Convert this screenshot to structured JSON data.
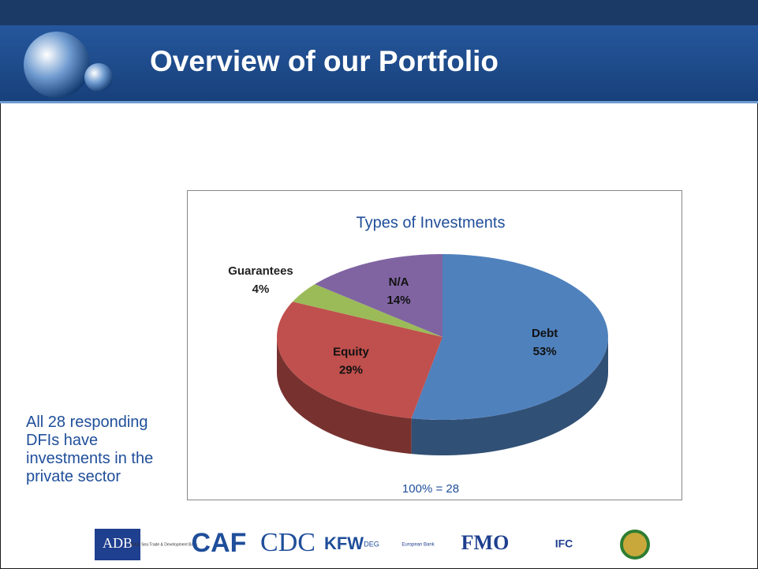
{
  "slide_title": "Overview of our Portfolio",
  "side_note": [
    "All 28 responding",
    "DFIs have",
    "investments in the",
    "private sector"
  ],
  "logos": [
    "ADB",
    "Black Sea Trade & Development Bank",
    "CAF",
    "CDC",
    "KFW",
    "DEG",
    "European Bank",
    "FMO",
    "IFC"
  ],
  "chart_data": {
    "type": "pie",
    "title": "Types of Investments",
    "annotation": "100% = 28",
    "categories": [
      "Debt",
      "Equity",
      "Guarantees",
      "N/A"
    ],
    "values": [
      53,
      29,
      4,
      14
    ],
    "value_labels": [
      "53%",
      "29%",
      "4%",
      "14%"
    ],
    "colors": [
      "#4f81bd",
      "#c0504d",
      "#9bbb59",
      "#8064a2"
    ]
  }
}
